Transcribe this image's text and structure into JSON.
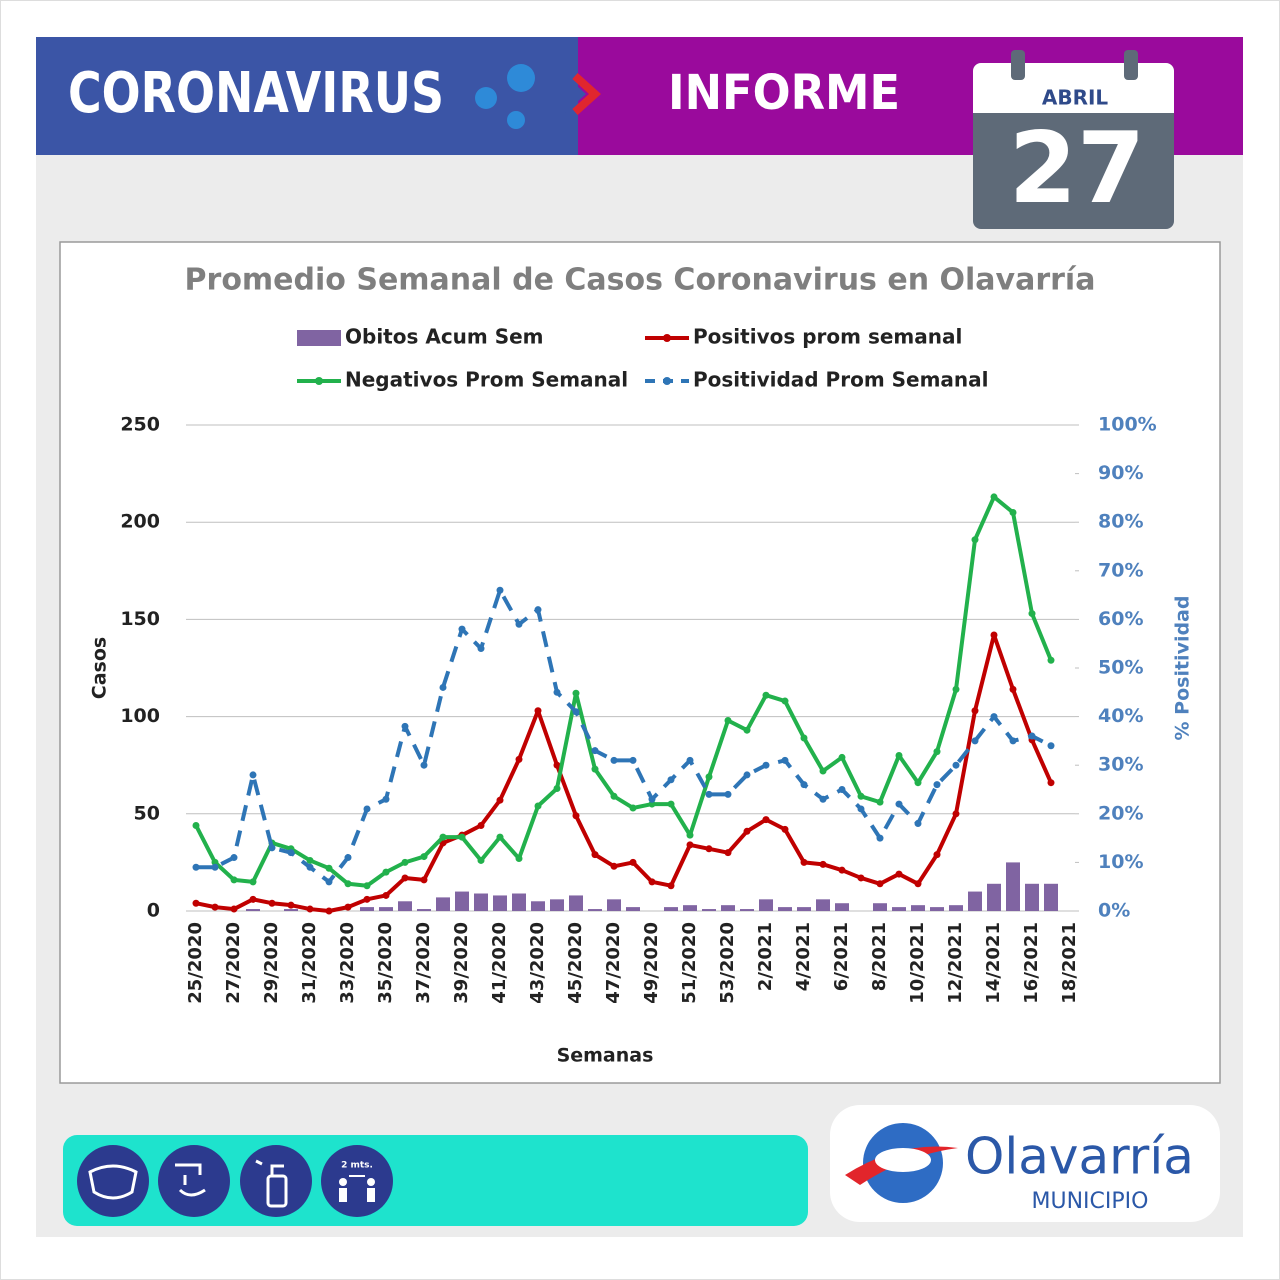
{
  "header": {
    "title": "CORONAVIRUS",
    "subtitle": "INFORME"
  },
  "date": {
    "month": "ABRIL",
    "day": "27"
  },
  "chart_data": {
    "type": "combo",
    "title": "Promedio Semanal de Casos Coronavirus en Olavarría",
    "x_label": "Semanas",
    "y_label": "Casos",
    "y2_label": "% Positividad",
    "categories": [
      "25/2020",
      null,
      "27/2020",
      null,
      "29/2020",
      null,
      "31/2020",
      null,
      "33/2020",
      null,
      "35/2020",
      null,
      "37/2020",
      null,
      "39/2020",
      null,
      "41/2020",
      null,
      "43/2020",
      null,
      "45/2020",
      null,
      "47/2020",
      null,
      "49/2020",
      null,
      "51/2020",
      null,
      "53/2020",
      null,
      "2/2021",
      null,
      "4/2021",
      null,
      "6/2021",
      null,
      "8/2021",
      null,
      "10/2021",
      null,
      "12/2021",
      null,
      "14/2021",
      null,
      "16/2021",
      null,
      "18/2021"
    ],
    "ylim": [
      0,
      250
    ],
    "yticks": [
      0,
      50,
      100,
      150,
      200,
      250
    ],
    "y2lim": [
      0,
      100
    ],
    "y2ticks": [
      {
        "value": 0,
        "label": "0%"
      },
      {
        "value": 10,
        "label": "10%"
      },
      {
        "value": 20,
        "label": "20%"
      },
      {
        "value": 30,
        "label": "30%"
      },
      {
        "value": 40,
        "label": "40%"
      },
      {
        "value": 50,
        "label": "50%"
      },
      {
        "value": 60,
        "label": "60%"
      },
      {
        "value": 70,
        "label": "70%"
      },
      {
        "value": 80,
        "label": "80%"
      },
      {
        "value": 90,
        "label": "90%"
      },
      {
        "value": 100,
        "label": "100%"
      }
    ],
    "grid": true,
    "legend": "top",
    "series": [
      {
        "name": "Obitos Acum Sem",
        "type": "bar",
        "color": "#8064a2",
        "values": [
          0,
          0,
          0,
          1,
          0,
          1,
          0,
          0,
          0,
          2,
          2,
          5,
          1,
          7,
          10,
          9,
          8,
          9,
          5,
          6,
          8,
          1,
          6,
          2,
          0,
          2,
          3,
          1,
          3,
          1,
          6,
          2,
          2,
          6,
          4,
          0,
          4,
          2,
          3,
          2,
          3,
          10,
          14,
          25,
          14,
          14,
          null
        ]
      },
      {
        "name": "Positivos prom semanal",
        "type": "line",
        "color": "#c00000",
        "values": [
          4,
          2,
          1,
          6,
          4,
          3,
          1,
          0,
          2,
          6,
          8,
          17,
          16,
          35,
          39,
          44,
          57,
          78,
          103,
          75,
          49,
          29,
          23,
          25,
          15,
          13,
          34,
          32,
          30,
          41,
          47,
          42,
          25,
          24,
          21,
          17,
          14,
          19,
          14,
          29,
          50,
          103,
          142,
          114,
          88,
          66,
          null
        ]
      },
      {
        "name": "Negativos Prom Semanal",
        "type": "line",
        "color": "#22b14c",
        "values": [
          44,
          25,
          16,
          15,
          35,
          32,
          26,
          22,
          14,
          13,
          20,
          25,
          28,
          38,
          38,
          26,
          38,
          27,
          54,
          63,
          112,
          73,
          59,
          53,
          55,
          55,
          39,
          69,
          98,
          93,
          111,
          108,
          89,
          72,
          79,
          59,
          56,
          80,
          66,
          82,
          114,
          191,
          213,
          205,
          153,
          129,
          null
        ]
      },
      {
        "name": "Positividad Prom Semanal",
        "type": "line",
        "dashed": true,
        "axis": "y2",
        "color": "#2e75b6",
        "values": [
          9,
          9,
          11,
          28,
          13,
          12,
          9,
          6,
          11,
          21,
          23,
          38,
          30,
          46,
          58,
          54,
          66,
          59,
          62,
          45,
          41,
          33,
          31,
          31,
          23,
          27,
          31,
          24,
          24,
          28,
          30,
          31,
          26,
          23,
          25,
          21,
          15,
          22,
          18,
          26,
          30,
          35,
          40,
          35,
          36,
          34,
          null
        ]
      }
    ]
  },
  "footer": {
    "distance_label": "2 mts.",
    "logo_name": "Olavarría",
    "logo_sub": "MUNICIPIO"
  }
}
